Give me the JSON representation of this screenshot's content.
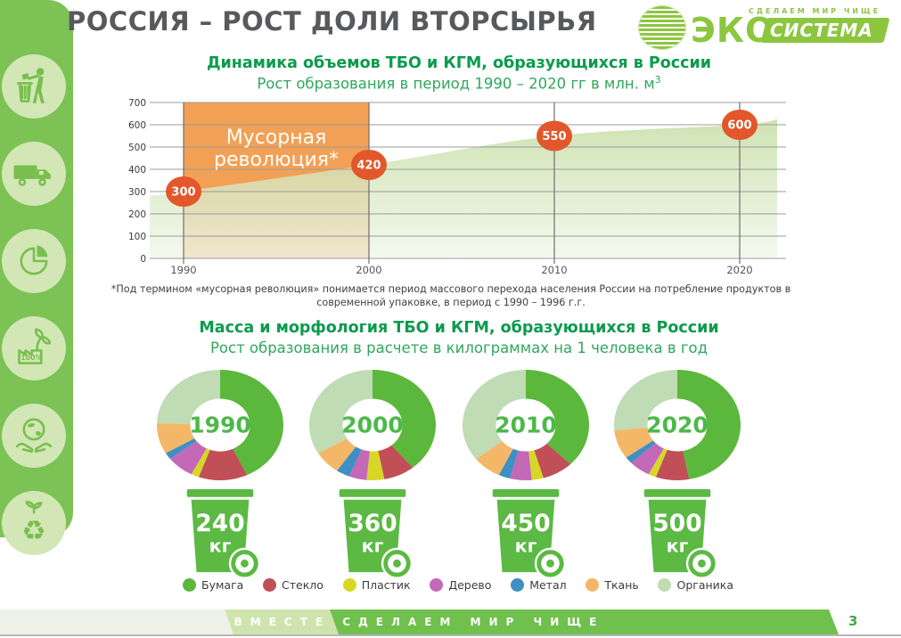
{
  "header": {
    "title": "РОССИЯ – РОСТ ДОЛИ ВТОРСЫРЬЯ"
  },
  "logo": {
    "tagline": "СДЕЛАЕМ МИР ЧИЩЕ",
    "eco": "ЭКО",
    "sistema": "СИСТЕМА"
  },
  "sidebar": {
    "icons": [
      "tidyman-icon",
      "garbage-truck-icon",
      "pie-chart-icon",
      "eco-factory-icon",
      "hands-globe-icon",
      "recycle-plant-icon"
    ],
    "factory_label": "100%",
    "recycle_glyph": "♻"
  },
  "charts": {
    "volume": {
      "title": "Динамика объемов ТБО и КГМ, образующихся в России",
      "subtitle": "Рост образования в период 1990 – 2020 гг в млн. м",
      "subtitle_sup": "3"
    },
    "mass": {
      "title": "Масса и морфология ТБО и КГМ, образующихся в России",
      "subtitle": "Рост образования в расчете в килограммах на 1 человека в год",
      "unit": "кг"
    }
  },
  "footnote": "*Под термином «мусорная революция» понимается период массового перехода населения России на потребление продуктов в современной упаковке, в период с 1990 – 1996 г.г.",
  "legend": {
    "items": [
      {
        "label": "Бумага",
        "color": "#5CB83C"
      },
      {
        "label": "Стекло",
        "color": "#C14F58"
      },
      {
        "label": "Пластик",
        "color": "#D6D825"
      },
      {
        "label": "Дерево",
        "color": "#C468B8"
      },
      {
        "label": "Метал",
        "color": "#3F8FC4"
      },
      {
        "label": "Ткань",
        "color": "#F4B768"
      },
      {
        "label": "Органика",
        "color": "#BFDCB4"
      }
    ]
  },
  "footer": {
    "slogan": "ВМЕСТЕ СДЕЛАЕМ МИР ЧИЩЕ",
    "page_number": "3"
  },
  "chart_data": [
    {
      "type": "area",
      "title": "Динамика объемов ТБО и КГМ, образующихся в России",
      "xlabel": "",
      "ylabel": "млн. м3",
      "x": [
        1990,
        2000,
        2010,
        2020
      ],
      "values": [
        300,
        420,
        550,
        600
      ],
      "edge_start_value": 280,
      "edge_end_value": 625,
      "ylim": [
        0,
        700
      ],
      "ytick_step": 100,
      "grid": true,
      "area_color_top": "#c3dca0",
      "area_color_bottom": "#f0f7ea",
      "marker_color": "#E2572B",
      "annotation": {
        "label": "Мусорная революция*",
        "x_from": 1990,
        "x_to": 2000,
        "color": "#F2A055"
      }
    },
    {
      "type": "donut-series",
      "title": "Масса и морфология ТБО и КГМ, образующихся в России",
      "categories": [
        "Бумага",
        "Стекло",
        "Пластик",
        "Дерево",
        "Метал",
        "Ткань",
        "Органика"
      ],
      "colors": [
        "#5CB83C",
        "#C14F58",
        "#D6D825",
        "#C468B8",
        "#3F8FC4",
        "#F4B768",
        "#BFDCB4"
      ],
      "year_color": "#4db84a",
      "donuts": [
        {
          "year": "1990",
          "bin_kg": "240",
          "values": [
            43,
            12.5,
            2,
            7,
            2,
            9,
            24.5
          ]
        },
        {
          "year": "2000",
          "bin_kg": "360",
          "values": [
            39,
            8,
            4.5,
            4.5,
            3.5,
            7,
            33.5
          ]
        },
        {
          "year": "2010",
          "bin_kg": "450",
          "values": [
            37.5,
            8,
            3,
            5.5,
            3,
            7.5,
            35.5
          ]
        },
        {
          "year": "2020",
          "bin_kg": "500",
          "values": [
            47,
            8.5,
            2,
            5.5,
            2,
            8.5,
            26.5
          ]
        }
      ]
    }
  ]
}
